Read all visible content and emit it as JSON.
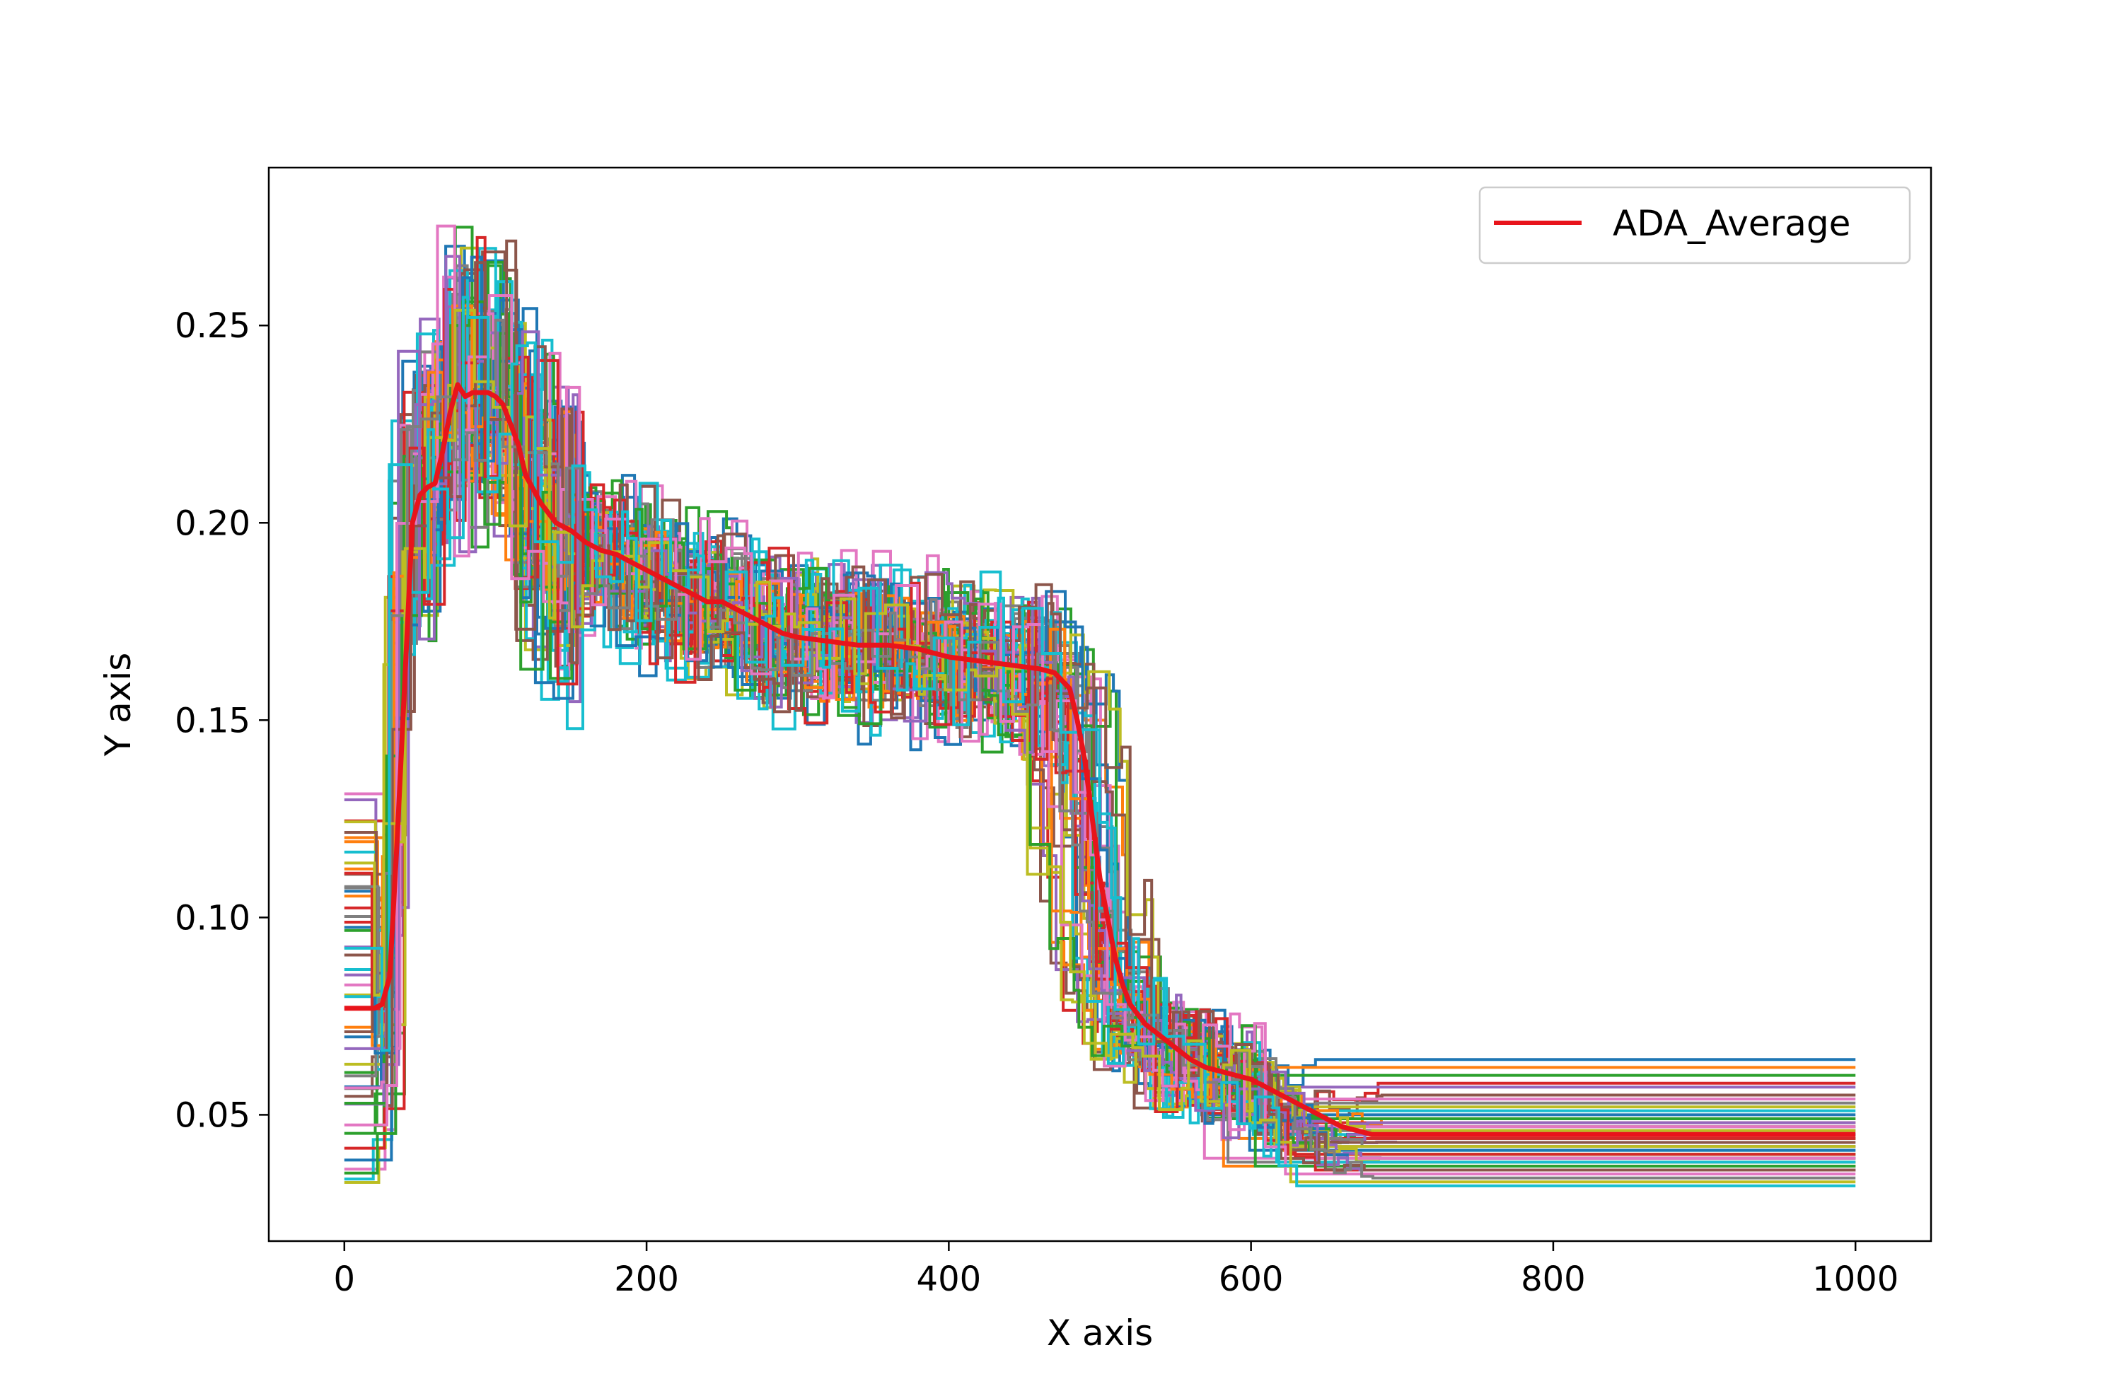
{
  "chart_data": {
    "type": "line",
    "title": "",
    "xlabel": "X axis",
    "ylabel": "Y axis",
    "xlim": [
      -50,
      1050
    ],
    "ylim": [
      0.018,
      0.29
    ],
    "xticks": [
      0,
      200,
      400,
      600,
      800,
      1000
    ],
    "xtick_labels": [
      "0",
      "200",
      "400",
      "600",
      "800",
      "1000"
    ],
    "yticks": [
      0.05,
      0.1,
      0.15,
      0.2,
      0.25
    ],
    "ytick_labels": [
      "0.05",
      "0.10",
      "0.15",
      "0.20",
      "0.25"
    ],
    "grid": false,
    "legend": {
      "placement": "top-right",
      "entries": [
        "ADA_Average"
      ]
    },
    "run_count": 50,
    "run_final_values": [
      0.064,
      0.062,
      0.06,
      0.058,
      0.057,
      0.055,
      0.054,
      0.053,
      0.052,
      0.051,
      0.05,
      0.049,
      0.049,
      0.048,
      0.048,
      0.047,
      0.047,
      0.046,
      0.046,
      0.045,
      0.045,
      0.044,
      0.044,
      0.044,
      0.043,
      0.043,
      0.042,
      0.042,
      0.042,
      0.041,
      0.041,
      0.04,
      0.04,
      0.04,
      0.039,
      0.039,
      0.039,
      0.038,
      0.038,
      0.038,
      0.037,
      0.037,
      0.037,
      0.036,
      0.036,
      0.036,
      0.035,
      0.034,
      0.033,
      0.032
    ],
    "series": [
      {
        "name": "ADA_Average",
        "color": "#e8141b",
        "x": [
          0,
          20,
          25,
          30,
          35,
          40,
          45,
          50,
          55,
          60,
          65,
          70,
          75,
          80,
          85,
          90,
          95,
          100,
          105,
          110,
          115,
          120,
          130,
          140,
          150,
          160,
          170,
          180,
          190,
          200,
          210,
          220,
          230,
          240,
          250,
          260,
          270,
          280,
          290,
          300,
          320,
          340,
          360,
          380,
          400,
          420,
          440,
          460,
          470,
          480,
          485,
          490,
          495,
          500,
          505,
          510,
          515,
          520,
          530,
          540,
          550,
          560,
          570,
          580,
          590,
          600,
          610,
          620,
          630,
          640,
          650,
          660,
          670,
          680,
          700,
          750,
          800,
          900,
          1000
        ],
        "y": [
          0.077,
          0.077,
          0.078,
          0.085,
          0.12,
          0.16,
          0.2,
          0.207,
          0.209,
          0.21,
          0.218,
          0.228,
          0.235,
          0.232,
          0.233,
          0.233,
          0.233,
          0.232,
          0.23,
          0.225,
          0.22,
          0.212,
          0.205,
          0.2,
          0.198,
          0.195,
          0.193,
          0.192,
          0.19,
          0.188,
          0.186,
          0.184,
          0.182,
          0.18,
          0.18,
          0.178,
          0.176,
          0.174,
          0.172,
          0.171,
          0.17,
          0.169,
          0.169,
          0.168,
          0.166,
          0.165,
          0.164,
          0.163,
          0.162,
          0.158,
          0.15,
          0.14,
          0.125,
          0.11,
          0.1,
          0.09,
          0.083,
          0.078,
          0.073,
          0.07,
          0.067,
          0.064,
          0.062,
          0.061,
          0.06,
          0.059,
          0.057,
          0.055,
          0.053,
          0.051,
          0.049,
          0.047,
          0.046,
          0.045,
          0.045,
          0.045,
          0.045,
          0.045,
          0.045
        ]
      }
    ]
  },
  "palette": [
    "#1f77b4",
    "#ff7f0e",
    "#2ca02c",
    "#d62728",
    "#9467bd",
    "#8c564b",
    "#e377c2",
    "#7f7f7f",
    "#bcbd22",
    "#17becf"
  ]
}
